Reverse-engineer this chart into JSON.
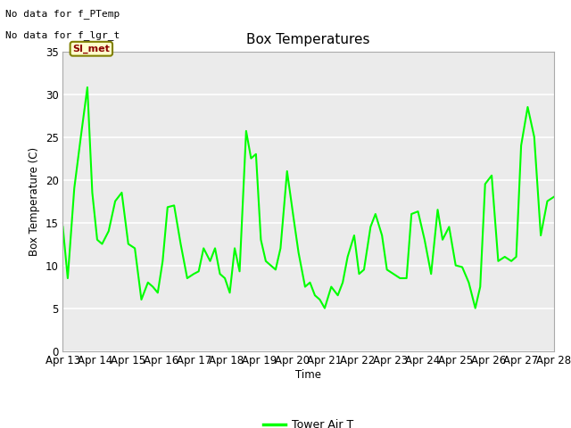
{
  "title": "Box Temperatures",
  "ylabel": "Box Temperature (C)",
  "xlabel": "Time",
  "no_data_text": [
    "No data for f_PTemp",
    "No data for f_lgr_t"
  ],
  "si_met_label": "SI_met",
  "legend_label": "Tower Air T",
  "line_color": "#00ff00",
  "plot_bg_color": "#ebebeb",
  "fig_bg_color": "#ffffff",
  "ylim": [
    0,
    35
  ],
  "yticks": [
    0,
    5,
    10,
    15,
    20,
    25,
    30,
    35
  ],
  "xtick_labels": [
    "Apr 13",
    "Apr 14",
    "Apr 15",
    "Apr 16",
    "Apr 17",
    "Apr 18",
    "Apr 19",
    "Apr 20",
    "Apr 21",
    "Apr 22",
    "Apr 23",
    "Apr 24",
    "Apr 25",
    "Apr 26",
    "Apr 27",
    "Apr 28"
  ],
  "time_values": [
    0,
    0.15,
    0.35,
    0.55,
    0.75,
    0.9,
    1.05,
    1.2,
    1.4,
    1.6,
    1.8,
    2.0,
    2.2,
    2.4,
    2.6,
    2.75,
    2.9,
    3.05,
    3.2,
    3.4,
    3.6,
    3.8,
    4.0,
    4.15,
    4.3,
    4.5,
    4.65,
    4.8,
    4.95,
    5.1,
    5.25,
    5.4,
    5.6,
    5.75,
    5.9,
    6.05,
    6.2,
    6.35,
    6.5,
    6.65,
    6.85,
    7.05,
    7.2,
    7.4,
    7.55,
    7.7,
    7.85,
    8.0,
    8.2,
    8.4,
    8.55,
    8.7,
    8.9,
    9.05,
    9.2,
    9.4,
    9.55,
    9.75,
    9.9,
    10.1,
    10.3,
    10.5,
    10.65,
    10.85,
    11.05,
    11.25,
    11.45,
    11.6,
    11.8,
    12.0,
    12.2,
    12.4,
    12.6,
    12.75,
    12.9,
    13.1,
    13.3,
    13.5,
    13.7,
    13.85,
    14.0,
    14.2,
    14.4,
    14.6,
    14.8,
    15.0
  ],
  "temp_values": [
    14.5,
    8.5,
    19,
    25,
    30.8,
    18.5,
    13,
    12.5,
    14,
    17.5,
    18.5,
    12.5,
    12,
    6,
    8,
    7.5,
    6.8,
    10.5,
    16.8,
    17,
    12.5,
    8.5,
    9,
    9.3,
    12,
    10.5,
    12,
    9,
    8.5,
    6.8,
    12,
    9.3,
    25.7,
    22.5,
    23,
    13,
    10.5,
    10,
    9.5,
    12,
    21,
    15.5,
    11.5,
    7.5,
    8,
    6.5,
    6,
    5,
    7.5,
    6.5,
    8,
    11,
    13.5,
    9,
    9.5,
    14.5,
    16,
    13.5,
    9.5,
    9,
    8.5,
    8.5,
    16,
    16.3,
    13,
    9,
    16.5,
    13,
    14.5,
    10,
    9.8,
    8,
    5,
    7.5,
    19.5,
    20.5,
    10.5,
    11,
    10.5,
    11,
    24,
    28.5,
    25,
    13.5,
    17.5,
    18
  ]
}
